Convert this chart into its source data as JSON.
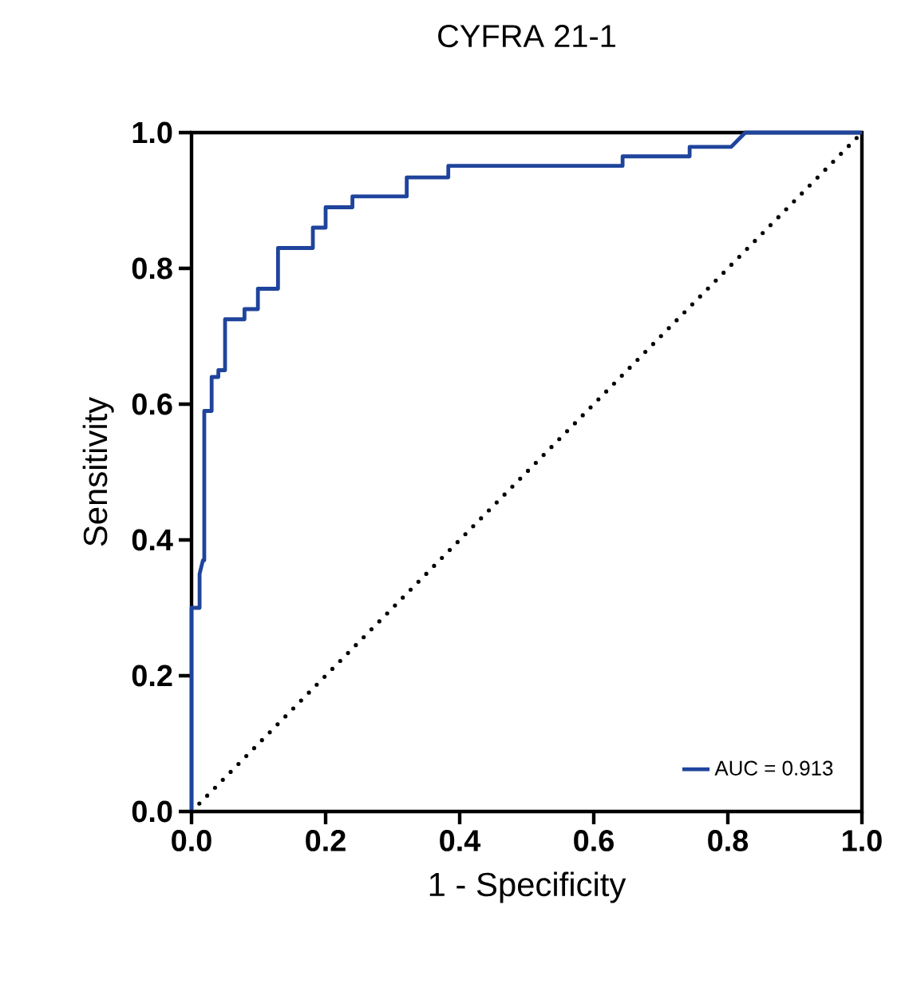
{
  "chart_data": {
    "type": "line",
    "title": "CYFRA 21-1",
    "xlabel": "1 - Specificity",
    "ylabel": "Sensitivity",
    "xlim": [
      0,
      1
    ],
    "ylim": [
      0,
      1
    ],
    "xticks": [
      {
        "value": 0,
        "label": "0.0"
      },
      0.2,
      0.4,
      0.6,
      0.8,
      {
        "value": 1,
        "label": "1.0"
      }
    ],
    "yticks": [
      {
        "value": 0,
        "label": "0.0"
      },
      0.2,
      0.4,
      0.6,
      0.8,
      {
        "value": 1,
        "label": "1.0"
      }
    ],
    "grid": false,
    "legend": "bottom right",
    "marker": "none",
    "series": [
      {
        "name": "AUC = 0.913",
        "color": "#1f449c",
        "line_style": "solid",
        "x": [
          0,
          0,
          0.012,
          0.012,
          0.017,
          0.019,
          0.019,
          0.03,
          0.03,
          0.04,
          0.04,
          0.05,
          0.05,
          0.079,
          0.079,
          0.099,
          0.099,
          0.129,
          0.129,
          0.181,
          0.181,
          0.2,
          0.2,
          0.24,
          0.24,
          0.321,
          0.321,
          0.383,
          0.383,
          0.643,
          0.643,
          0.743,
          0.743,
          0.805,
          0.826,
          1
        ],
        "values": [
          0,
          0.3,
          0.3,
          0.35,
          0.37,
          0.37,
          0.59,
          0.59,
          0.64,
          0.64,
          0.65,
          0.65,
          0.725,
          0.725,
          0.74,
          0.74,
          0.77,
          0.77,
          0.83,
          0.83,
          0.86,
          0.86,
          0.89,
          0.89,
          0.906,
          0.906,
          0.934,
          0.934,
          0.951,
          0.951,
          0.965,
          0.965,
          0.979,
          0.979,
          1,
          1
        ]
      },
      {
        "color": "#000000",
        "line_style": "dotted",
        "x": [
          0,
          1
        ],
        "values": [
          0,
          1
        ]
      }
    ]
  }
}
